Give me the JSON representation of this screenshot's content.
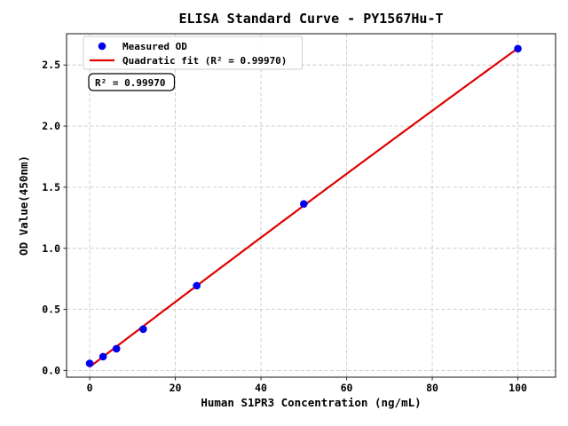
{
  "window": {
    "background": "#ffffff"
  },
  "chart_data": {
    "type": "scatter",
    "title": "ELISA Standard Curve - PY1567Hu-T",
    "xlabel": "Human S1PR3 Concentration (ng/mL)",
    "ylabel": "OD Value(450nm)",
    "x": [
      0,
      3.125,
      6.25,
      12.5,
      25,
      50,
      100
    ],
    "series": [
      {
        "name": "Measured OD",
        "kind": "scatter",
        "marker": "circle",
        "color": "#0000ee",
        "values": [
          0.058,
          0.113,
          0.178,
          0.338,
          0.694,
          1.363,
          2.634
        ]
      },
      {
        "name": "Quadratic fit (R² = 0.99970)",
        "kind": "line",
        "fit": "quadratic",
        "color": "#e00000",
        "x_range": [
          0,
          100
        ]
      }
    ],
    "xlim": [
      -5.4,
      108.8
    ],
    "ylim": [
      -0.055,
      2.756
    ],
    "xticks": [
      0,
      20,
      40,
      60,
      80,
      100
    ],
    "xtick_labels": [
      "0",
      "20",
      "40",
      "60",
      "80",
      "100"
    ],
    "yticks": [
      0,
      0.5,
      1,
      1.5,
      2,
      2.5
    ],
    "ytick_labels": [
      "0.0",
      "0.5",
      "1.0",
      "1.5",
      "2.0",
      "2.5"
    ],
    "grid": {
      "visible": true,
      "style": "dashed",
      "color": "#c9c9c9"
    },
    "legend": {
      "position": "upper-left",
      "border_color": "#cccccc",
      "background": "#ffffff",
      "entries": [
        "Measured OD",
        "Quadratic fit (R² = 0.99970)"
      ]
    },
    "annotation": {
      "text": "R² = 0.99970",
      "border_color": "#000000",
      "background": "#ffffff"
    },
    "r_squared": "0.99970",
    "axis_color": "#262626",
    "text_color": "#000000"
  }
}
